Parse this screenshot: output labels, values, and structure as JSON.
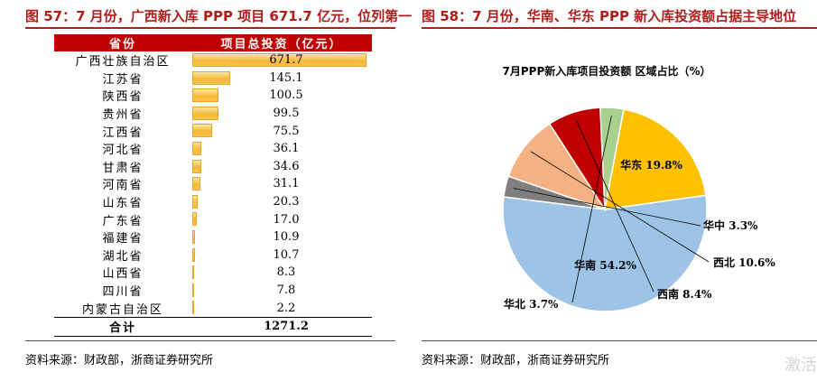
{
  "left_panel": {
    "title": "图 57：7 月份，广西新入库 PPP 项目 671.7 亿元，位列第一",
    "source": "资料来源：财政部，浙商证券研究所"
  },
  "right_panel": {
    "title": "图 58：7 月份，华南、华东 PPP 新入库投资额占据主导地位",
    "source": "资料来源：财政部，浙商证券研究所"
  },
  "watermark": "激活",
  "chart_data": [
    {
      "type": "table",
      "columns": [
        "省份",
        "项目总投资（亿元）"
      ],
      "rows": [
        {
          "province": "广西壮族自治区",
          "value": 671.7,
          "label": "671.7"
        },
        {
          "province": "江苏省",
          "value": 145.1,
          "label": "145.1"
        },
        {
          "province": "陕西省",
          "value": 100.5,
          "label": "100.5"
        },
        {
          "province": "贵州省",
          "value": 99.5,
          "label": "99.5"
        },
        {
          "province": "江西省",
          "value": 75.5,
          "label": "75.5"
        },
        {
          "province": "河北省",
          "value": 36.1,
          "label": "36.1"
        },
        {
          "province": "甘肃省",
          "value": 34.6,
          "label": "34.6"
        },
        {
          "province": "河南省",
          "value": 31.1,
          "label": "31.1"
        },
        {
          "province": "山东省",
          "value": 20.3,
          "label": "20.3"
        },
        {
          "province": "广东省",
          "value": 17.0,
          "label": "17.0"
        },
        {
          "province": "福建省",
          "value": 10.9,
          "label": "10.9"
        },
        {
          "province": "湖北省",
          "value": 10.7,
          "label": "10.7"
        },
        {
          "province": "山西省",
          "value": 8.3,
          "label": "8.3"
        },
        {
          "province": "四川省",
          "value": 7.8,
          "label": "7.8"
        },
        {
          "province": "内蒙古自治区",
          "value": 2.2,
          "label": "2.2"
        }
      ],
      "total": {
        "label": "合计",
        "value": "1271.2"
      }
    },
    {
      "type": "pie",
      "title": "7月PPP新入库项目投资额 区域占比（%）",
      "slices": [
        {
          "name": "华南",
          "value": 54.2,
          "label": "华南 54.2%",
          "color": "#9dc3e6"
        },
        {
          "name": "华中",
          "value": 3.3,
          "label": "华中 3.3%",
          "color": "#7f7f7f"
        },
        {
          "name": "西北",
          "value": 10.6,
          "label": "西北 10.6%",
          "color": "#f4b183"
        },
        {
          "name": "西南",
          "value": 8.4,
          "label": "西南 8.4%",
          "color": "#c00000"
        },
        {
          "name": "华北",
          "value": 3.7,
          "label": "华北 3.7%",
          "color": "#a9d18e"
        },
        {
          "name": "华东",
          "value": 19.8,
          "label": "华东 19.8%",
          "color": "#ffc000"
        }
      ]
    }
  ]
}
